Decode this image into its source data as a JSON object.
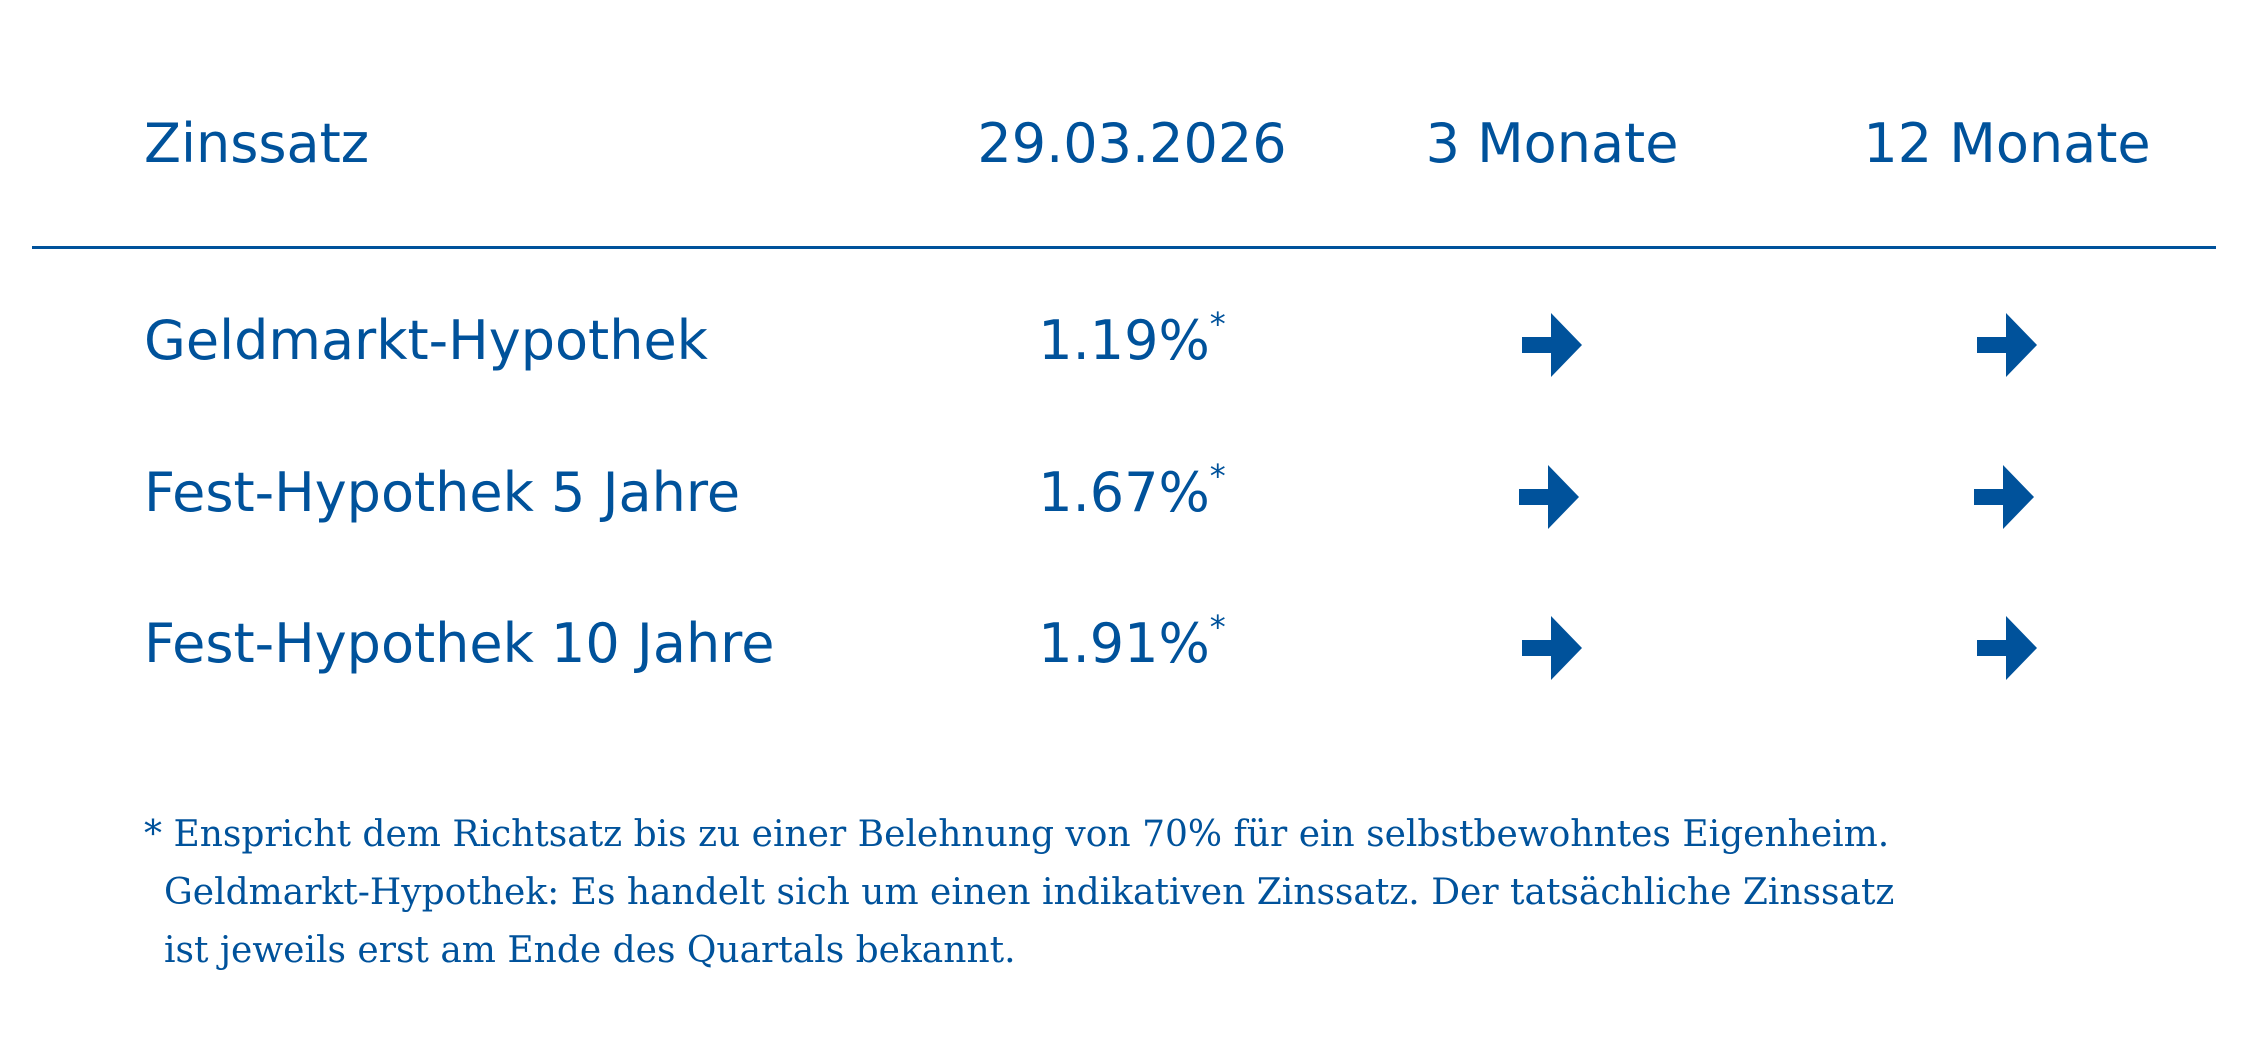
{
  "header": {
    "col_label": "Zinssatz",
    "col_date": "29.03.2026",
    "col_3m": "3 Monate",
    "col_12m": "12 Monate"
  },
  "rows": [
    {
      "label": "Geldmarkt-Hypothek",
      "rate": "1.19%",
      "marker": "*",
      "trend_3m": "arrow-right-icon",
      "trend_12m": "arrow-right-icon"
    },
    {
      "label": "Fest-Hypothek 5 Jahre",
      "rate": "1.67%",
      "marker": "*",
      "trend_3m": "arrow-right-icon",
      "trend_12m": "arrow-right-icon"
    },
    {
      "label": "Fest-Hypothek 10 Jahre",
      "rate": "1.91%",
      "marker": "*",
      "trend_3m": "arrow-right-icon",
      "trend_12m": "arrow-right-icon"
    }
  ],
  "footnote": {
    "line1": "* Enspricht dem Richtsatz bis zu einer Belehnung von 70% für ein selbstbewohntes Eigenheim.",
    "line2": "Geldmarkt-Hypothek: Es handelt sich um einen indikativen Zinssatz. Der tatsächliche Zinssatz",
    "line3": "ist jeweils erst am Ende des Quartals bekannt."
  },
  "colors": {
    "brand": "#00529b",
    "background": "#ffffff"
  }
}
